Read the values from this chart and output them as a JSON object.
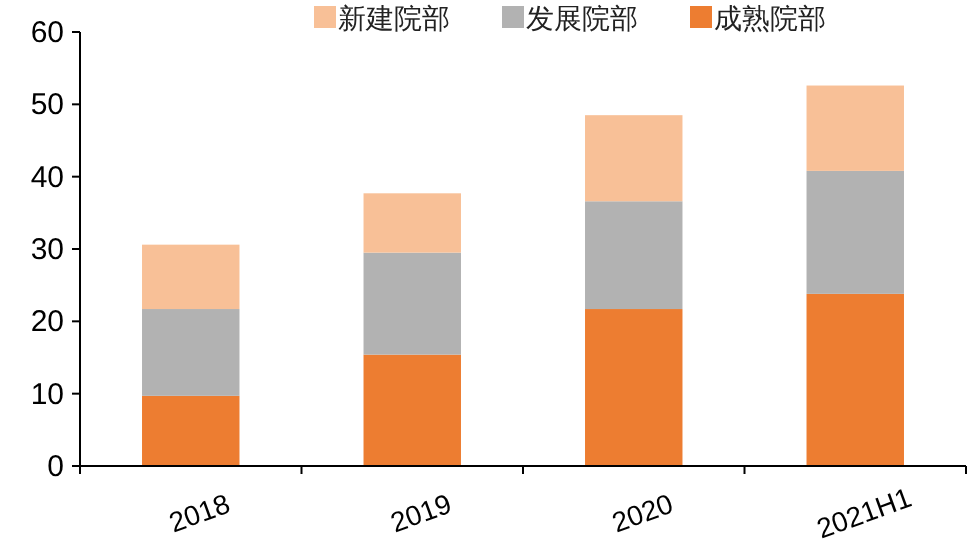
{
  "chart_data": {
    "type": "bar",
    "stacked": true,
    "categories": [
      "2018",
      "2019",
      "2020",
      "2021H1"
    ],
    "series": [
      {
        "name": "成熟院部",
        "color": "#ed7d31",
        "values": [
          9.7,
          15.4,
          21.7,
          23.8
        ]
      },
      {
        "name": "发展院部",
        "color": "#b2b2b2",
        "values": [
          12.0,
          14.1,
          14.9,
          17.0
        ]
      },
      {
        "name": "新建院部",
        "color": "#f8c097",
        "values": [
          8.9,
          8.2,
          11.9,
          11.8
        ]
      }
    ],
    "ylim": [
      0,
      60
    ],
    "yticks": [
      0,
      10,
      20,
      30,
      40,
      50,
      60
    ],
    "grid": false,
    "legend": "top"
  }
}
